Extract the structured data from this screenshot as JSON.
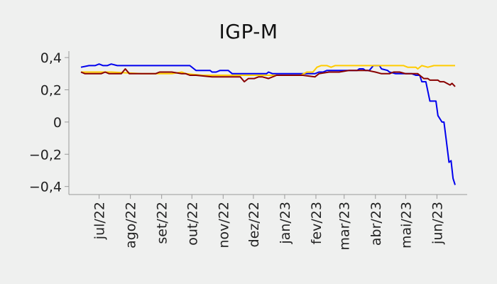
{
  "chart_data": {
    "type": "line",
    "title": "IGP-M",
    "xlabel": "",
    "ylabel": "",
    "x_ticks": [
      "jul/22",
      "ago/22",
      "set/22",
      "out/22",
      "nov/22",
      "dez/22",
      "jan/23",
      "fev/23",
      "mar/23",
      "abr/23",
      "mai/23",
      "jun/23"
    ],
    "x_tick_days": [
      18,
      49,
      80,
      110,
      141,
      171,
      202,
      233,
      261,
      292,
      322,
      353
    ],
    "y_ticks": [
      {
        "value": 0.4,
        "label": "0,4"
      },
      {
        "value": 0.2,
        "label": "0,2"
      },
      {
        "value": 0,
        "label": "0"
      },
      {
        "value": -0.2,
        "label": "−0,2"
      },
      {
        "value": -0.4,
        "label": "−0,4"
      }
    ],
    "ylim": [
      -0.45,
      0.44
    ],
    "xlim": [
      -12,
      383
    ],
    "grid": false,
    "legend": "none",
    "series": [
      {
        "color": "#0000ee",
        "points": [
          [
            0,
            0.34
          ],
          [
            8,
            0.35
          ],
          [
            14,
            0.35
          ],
          [
            18,
            0.36
          ],
          [
            22,
            0.35
          ],
          [
            26,
            0.35
          ],
          [
            30,
            0.36
          ],
          [
            36,
            0.35
          ],
          [
            60,
            0.35
          ],
          [
            78,
            0.35
          ],
          [
            108,
            0.35
          ],
          [
            114,
            0.32
          ],
          [
            122,
            0.32
          ],
          [
            128,
            0.32
          ],
          [
            130,
            0.31
          ],
          [
            134,
            0.31
          ],
          [
            138,
            0.32
          ],
          [
            146,
            0.32
          ],
          [
            150,
            0.3
          ],
          [
            176,
            0.3
          ],
          [
            180,
            0.3
          ],
          [
            184,
            0.3
          ],
          [
            186,
            0.31
          ],
          [
            190,
            0.3
          ],
          [
            228,
            0.3
          ],
          [
            232,
            0.3
          ],
          [
            236,
            0.31
          ],
          [
            240,
            0.31
          ],
          [
            244,
            0.32
          ],
          [
            268,
            0.32
          ],
          [
            274,
            0.32
          ],
          [
            276,
            0.33
          ],
          [
            280,
            0.33
          ],
          [
            282,
            0.32
          ],
          [
            286,
            0.32
          ],
          [
            290,
            0.35
          ],
          [
            296,
            0.35
          ],
          [
            298,
            0.33
          ],
          [
            304,
            0.32
          ],
          [
            306,
            0.31
          ],
          [
            312,
            0.3
          ],
          [
            328,
            0.3
          ],
          [
            332,
            0.29
          ],
          [
            336,
            0.29
          ],
          [
            338,
            0.25
          ],
          [
            342,
            0.25
          ],
          [
            346,
            0.13
          ],
          [
            352,
            0.13
          ],
          [
            354,
            0.04
          ],
          [
            358,
            0.0
          ],
          [
            360,
            0.0
          ],
          [
            362,
            -0.1
          ],
          [
            365,
            -0.25
          ],
          [
            367,
            -0.24
          ],
          [
            369,
            -0.35
          ],
          [
            371,
            -0.39
          ]
        ]
      },
      {
        "color": "#ffcc00",
        "points": [
          [
            0,
            0.31
          ],
          [
            30,
            0.31
          ],
          [
            60,
            0.3
          ],
          [
            90,
            0.3
          ],
          [
            100,
            0.31
          ],
          [
            104,
            0.3
          ],
          [
            120,
            0.29
          ],
          [
            150,
            0.29
          ],
          [
            180,
            0.29
          ],
          [
            218,
            0.29
          ],
          [
            224,
            0.31
          ],
          [
            230,
            0.31
          ],
          [
            234,
            0.34
          ],
          [
            238,
            0.35
          ],
          [
            244,
            0.35
          ],
          [
            248,
            0.34
          ],
          [
            252,
            0.35
          ],
          [
            300,
            0.35
          ],
          [
            316,
            0.35
          ],
          [
            320,
            0.35
          ],
          [
            324,
            0.34
          ],
          [
            332,
            0.34
          ],
          [
            334,
            0.33
          ],
          [
            338,
            0.35
          ],
          [
            344,
            0.34
          ],
          [
            350,
            0.35
          ],
          [
            371,
            0.35
          ]
        ]
      },
      {
        "color": "#880000",
        "points": [
          [
            0,
            0.31
          ],
          [
            4,
            0.3
          ],
          [
            20,
            0.3
          ],
          [
            24,
            0.31
          ],
          [
            28,
            0.3
          ],
          [
            40,
            0.3
          ],
          [
            44,
            0.33
          ],
          [
            48,
            0.3
          ],
          [
            74,
            0.3
          ],
          [
            78,
            0.31
          ],
          [
            90,
            0.31
          ],
          [
            100,
            0.3
          ],
          [
            104,
            0.3
          ],
          [
            108,
            0.29
          ],
          [
            114,
            0.29
          ],
          [
            130,
            0.28
          ],
          [
            150,
            0.28
          ],
          [
            158,
            0.28
          ],
          [
            162,
            0.25
          ],
          [
            166,
            0.27
          ],
          [
            172,
            0.27
          ],
          [
            176,
            0.28
          ],
          [
            180,
            0.28
          ],
          [
            186,
            0.27
          ],
          [
            194,
            0.29
          ],
          [
            220,
            0.29
          ],
          [
            232,
            0.28
          ],
          [
            236,
            0.3
          ],
          [
            246,
            0.31
          ],
          [
            256,
            0.31
          ],
          [
            266,
            0.32
          ],
          [
            284,
            0.32
          ],
          [
            292,
            0.31
          ],
          [
            298,
            0.3
          ],
          [
            306,
            0.3
          ],
          [
            310,
            0.31
          ],
          [
            316,
            0.31
          ],
          [
            322,
            0.3
          ],
          [
            334,
            0.3
          ],
          [
            340,
            0.27
          ],
          [
            344,
            0.27
          ],
          [
            346,
            0.26
          ],
          [
            354,
            0.26
          ],
          [
            356,
            0.25
          ],
          [
            360,
            0.25
          ],
          [
            366,
            0.23
          ],
          [
            368,
            0.24
          ],
          [
            371,
            0.22
          ]
        ]
      }
    ]
  }
}
